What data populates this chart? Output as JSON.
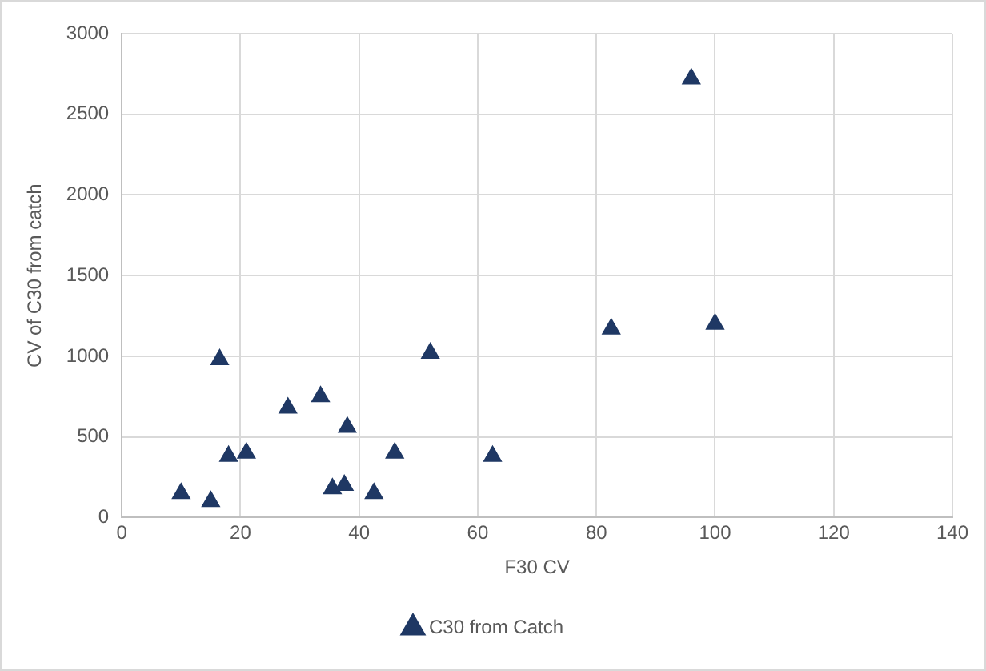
{
  "chart_data": {
    "type": "scatter",
    "xlabel": "F30 CV",
    "ylabel": "CV of C30 from catch",
    "x": [
      10,
      15,
      16.5,
      18,
      21,
      28,
      33.5,
      35.5,
      37.5,
      38,
      42.5,
      46,
      52,
      62.5,
      82.5,
      96,
      100
    ],
    "series": [
      {
        "name": "C30 from Catch",
        "color": "#1f3864",
        "values": [
          150,
          100,
          980,
          380,
          400,
          680,
          750,
          180,
          200,
          560,
          150,
          400,
          1020,
          380,
          1170,
          2720,
          1200
        ]
      }
    ],
    "xlim": [
      0,
      140
    ],
    "xticks": [
      0,
      20,
      40,
      60,
      80,
      100,
      120,
      140
    ],
    "ylim": [
      0,
      3000
    ],
    "yticks": [
      0,
      500,
      1000,
      1500,
      2000,
      2500,
      3000
    ],
    "grid": true,
    "legend": "bottom",
    "marker": "triangle"
  }
}
